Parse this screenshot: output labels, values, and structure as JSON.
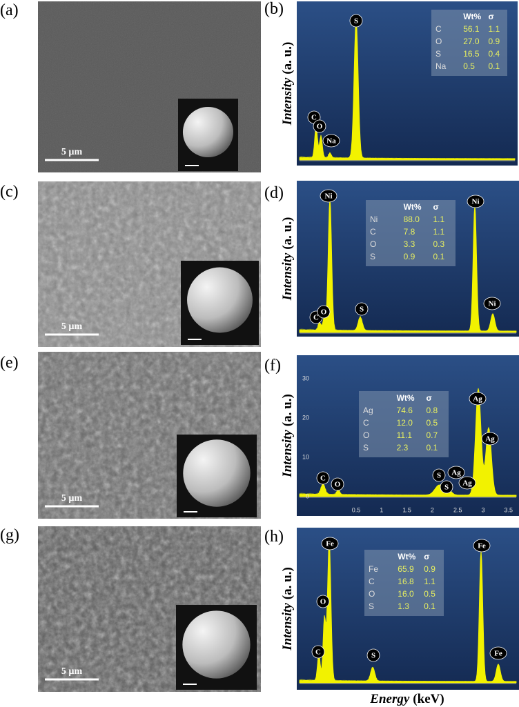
{
  "sem": [
    {
      "label": "(a)",
      "scale_bar": "5 µm"
    },
    {
      "label": "(c)",
      "scale_bar": "5 µm"
    },
    {
      "label": "(e)",
      "scale_bar": "5 µm"
    },
    {
      "label": "(g)",
      "scale_bar": "5 µm"
    }
  ],
  "eds": [
    {
      "label": "(b)",
      "table": {
        "header": [
          "Wt%",
          "σ"
        ],
        "rows": [
          [
            "C",
            "56.1",
            "1.1"
          ],
          [
            "O",
            "27.0",
            "0.9"
          ],
          [
            "S",
            "16.5",
            "0.4"
          ],
          [
            "Na",
            "0.5",
            "0.1"
          ]
        ]
      },
      "peaks": [
        "S",
        "C",
        "O",
        "Na"
      ]
    },
    {
      "label": "(d)",
      "table": {
        "header": [
          "Wt%",
          "σ"
        ],
        "rows": [
          [
            "Ni",
            "88.0",
            "1.1"
          ],
          [
            "C",
            "7.8",
            "1.1"
          ],
          [
            "O",
            "3.3",
            "0.3"
          ],
          [
            "S",
            "0.9",
            "0.1"
          ]
        ]
      },
      "peaks": [
        "Ni",
        "C",
        "O",
        "S",
        "Ni",
        "Ni"
      ]
    },
    {
      "label": "(f)",
      "table": {
        "header": [
          "Wt%",
          "σ"
        ],
        "rows": [
          [
            "Ag",
            "74.6",
            "0.8"
          ],
          [
            "C",
            "12.0",
            "0.5"
          ],
          [
            "O",
            "11.1",
            "0.7"
          ],
          [
            "S",
            "2.3",
            "0.1"
          ]
        ]
      },
      "peaks": [
        "C",
        "O",
        "S",
        "S",
        "Ag",
        "Ag",
        "Ag",
        "Ag"
      ],
      "yticks": [
        "0",
        "10",
        "20",
        "30"
      ],
      "xticks": [
        "0.5",
        "1",
        "1.5",
        "2",
        "2.5",
        "3",
        "3.5"
      ]
    },
    {
      "label": "(h)",
      "table": {
        "header": [
          "Wt%",
          "σ"
        ],
        "rows": [
          [
            "Fe",
            "65.9",
            "0.9"
          ],
          [
            "C",
            "16.8",
            "1.1"
          ],
          [
            "O",
            "16.0",
            "0.5"
          ],
          [
            "S",
            "1.3",
            "0.1"
          ]
        ]
      },
      "peaks": [
        "Fe",
        "O",
        "C",
        "S",
        "Fe",
        "Fe"
      ]
    }
  ],
  "y_label": {
    "italic": "Intensity",
    "unit": "(a. u.)"
  },
  "x_label": {
    "italic": "Energy",
    "unit": "(keV)"
  }
}
